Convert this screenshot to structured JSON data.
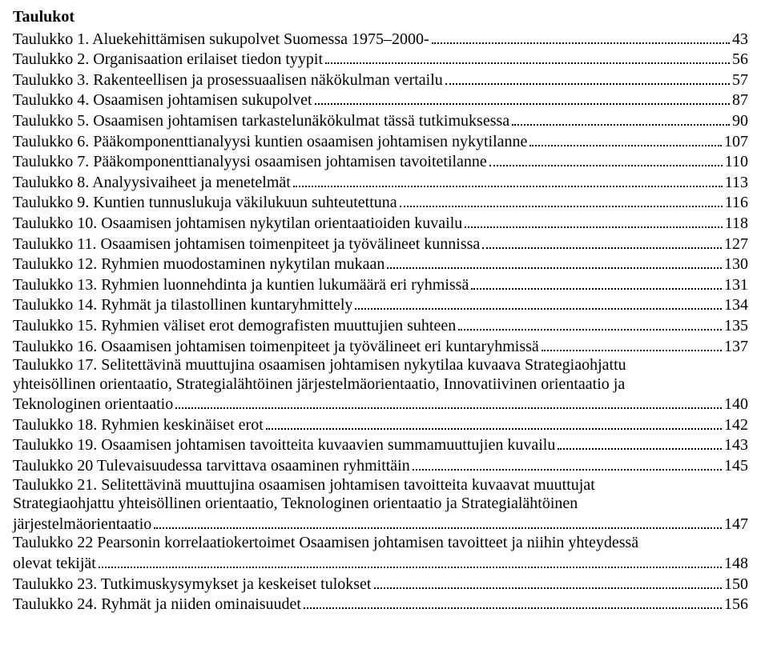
{
  "heading": "Taulukot",
  "entries": [
    {
      "label": "Taulukko 1. Aluekehittämisen sukupolvet Suomessa 1975–2000-",
      "page": "43"
    },
    {
      "label": "Taulukko 2. Organisaation erilaiset tiedon tyypit",
      "page": "56"
    },
    {
      "label": "Taulukko 3. Rakenteellisen ja prosessuaalisen näkökulman vertailu",
      "page": "57"
    },
    {
      "label": "Taulukko 4. Osaamisen johtamisen sukupolvet",
      "page": "87"
    },
    {
      "label": "Taulukko 5. Osaamisen johtamisen tarkastelunäkökulmat tässä tutkimuksessa",
      "page": "90"
    },
    {
      "label": "Taulukko 6. Pääkomponenttianalyysi kuntien osaamisen johtamisen nykytilanne",
      "page": "107"
    },
    {
      "label": "Taulukko 7. Pääkomponenttianalyysi osaamisen johtamisen tavoitetilanne",
      "page": "110"
    },
    {
      "label": "Taulukko 8. Analyysivaiheet ja menetelmät",
      "page": "113"
    },
    {
      "label": "Taulukko 9. Kuntien tunnuslukuja väkilukuun suhteutettuna",
      "page": "116"
    },
    {
      "label": "Taulukko 10. Osaamisen johtamisen nykytilan orientaatioiden kuvailu",
      "page": "118"
    },
    {
      "label": "Taulukko 11. Osaamisen johtamisen toimenpiteet ja työvälineet kunnissa",
      "page": "127"
    },
    {
      "label": "Taulukko 12. Ryhmien muodostaminen nykytilan mukaan",
      "page": "130"
    },
    {
      "label": "Taulukko 13. Ryhmien luonnehdinta ja kuntien lukumäärä eri ryhmissä",
      "page": "131"
    },
    {
      "label": "Taulukko 14. Ryhmät ja tilastollinen kuntaryhmittely",
      "page": "134"
    },
    {
      "label": "Taulukko 15. Ryhmien väliset erot demografisten muuttujien suhteen",
      "page": "135"
    },
    {
      "label": "Taulukko 16. Osaamisen johtamisen toimenpiteet ja työvälineet eri kuntaryhmissä",
      "page": "137"
    },
    {
      "wrap": true,
      "lines": [
        "Taulukko 17. Selitettävinä muuttujina osaamisen johtamisen nykytilaa kuvaava Strategiaohjattu",
        "yhteisöllinen orientaatio, Strategialähtöinen järjestelmäorientaatio, Innovatiivinen orientaatio ja"
      ],
      "last": "Teknologinen orientaatio",
      "page": "140"
    },
    {
      "label": "Taulukko 18. Ryhmien keskinäiset erot",
      "page": "142"
    },
    {
      "label": "Taulukko 19. Osaamisen johtamisen tavoitteita kuvaavien summamuuttujien kuvailu",
      "page": "143"
    },
    {
      "label": "Taulukko 20 Tulevaisuudessa tarvittava osaaminen ryhmittäin",
      "page": "145"
    },
    {
      "wrap": true,
      "lines": [
        "Taulukko 21. Selitettävinä muuttujina osaamisen johtamisen tavoitteita kuvaavat muuttujat",
        "Strategiaohjattu yhteisöllinen orientaatio, Teknologinen orientaatio ja Strategialähtöinen"
      ],
      "last": "järjestelmäorientaatio",
      "page": "147"
    },
    {
      "wrap": true,
      "lines": [
        "Taulukko 22 Pearsonin korrelaatiokertoimet Osaamisen johtamisen tavoitteet ja niihin yhteydessä"
      ],
      "last": "olevat tekijät",
      "page": "148"
    },
    {
      "label": "Taulukko 23. Tutkimuskysymykset ja keskeiset tulokset",
      "page": "150"
    },
    {
      "label": "Taulukko 24. Ryhmät ja niiden ominaisuudet",
      "page": "156"
    }
  ]
}
